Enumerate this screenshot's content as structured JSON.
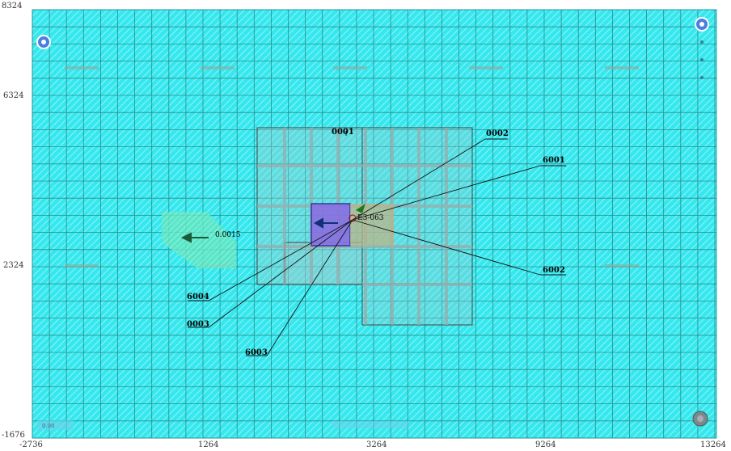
{
  "axes": {
    "y_ticks": [
      "8324",
      "6324",
      "2324",
      "-1676"
    ],
    "x_ticks": [
      "-2736",
      "1264",
      "3264",
      "9264",
      "13264"
    ]
  },
  "callouts": {
    "c0001_top": "0001",
    "c0002_top": "0002",
    "c6001": "6001",
    "c6002": "6002",
    "c6004": "6004",
    "c0003": "0003",
    "c6003": "6003",
    "c0015": "0.0015",
    "c_center": "E3-063"
  },
  "corner": {
    "bottom_left_text": "0.00"
  },
  "colors": {
    "background": "#36e8ee",
    "grid_major": "#2b8c8c",
    "hatch": "#7ff2f4",
    "accent_blue": "#4a7ee0",
    "selection_purple": "#8a6fe0"
  },
  "icons": {
    "top_left": "nav-circle-icon",
    "top_right": "nav-circle-icon",
    "bottom_right": "compass-icon"
  }
}
